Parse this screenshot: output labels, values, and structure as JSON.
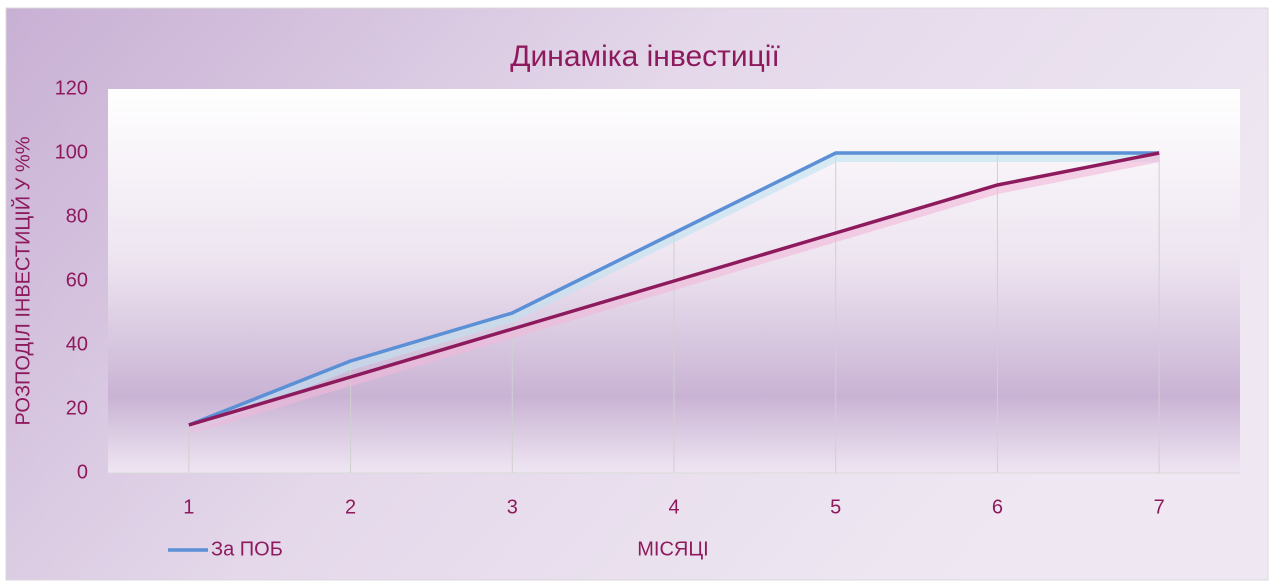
{
  "chart_data": {
    "type": "line",
    "title": "Динаміка інвестиції",
    "x_label": "МІСЯЦІ",
    "y_label": "РОЗПОДІЛ ІНВЕСТИЦІЙ У %%",
    "categories": [
      "1",
      "2",
      "3",
      "4",
      "5",
      "6",
      "7"
    ],
    "series": [
      {
        "name": "За ПОБ",
        "color": "#5b8fd6",
        "values": [
          15,
          35,
          50,
          75,
          100,
          100,
          100
        ]
      },
      {
        "color": "#8e1a5e",
        "values": [
          15,
          30,
          45,
          60,
          75,
          90,
          100
        ]
      }
    ],
    "ylim": [
      0,
      120
    ],
    "yticks": [
      0,
      20,
      40,
      60,
      80,
      100,
      120
    ],
    "legend": "bottom-left"
  }
}
